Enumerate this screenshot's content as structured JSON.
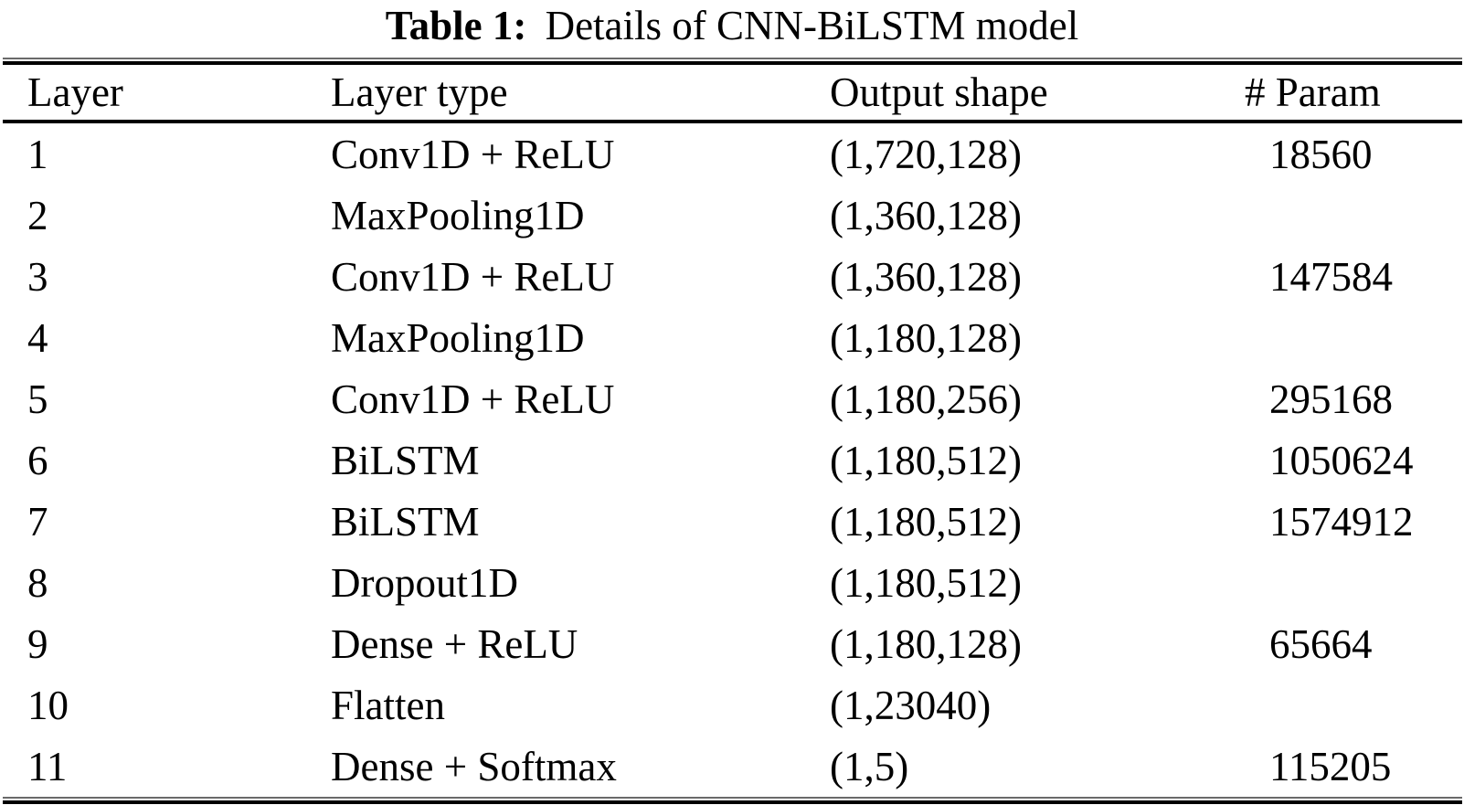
{
  "caption": {
    "label": "Table 1:",
    "text": "Details of CNN-BiLSTM model"
  },
  "table": {
    "headers": [
      "Layer",
      "Layer type",
      "Output shape",
      "# Param"
    ],
    "rows": [
      {
        "layer": "1",
        "layer_type": "Conv1D + ReLU",
        "output_shape": "(1,720,128)",
        "param": "18560"
      },
      {
        "layer": "2",
        "layer_type": "MaxPooling1D",
        "output_shape": "(1,360,128)",
        "param": ""
      },
      {
        "layer": "3",
        "layer_type": "Conv1D + ReLU",
        "output_shape": "(1,360,128)",
        "param": "147584"
      },
      {
        "layer": "4",
        "layer_type": "MaxPooling1D",
        "output_shape": "(1,180,128)",
        "param": ""
      },
      {
        "layer": "5",
        "layer_type": "Conv1D + ReLU",
        "output_shape": "(1,180,256)",
        "param": "295168"
      },
      {
        "layer": "6",
        "layer_type": "BiLSTM",
        "output_shape": "(1,180,512)",
        "param": "1050624"
      },
      {
        "layer": "7",
        "layer_type": "BiLSTM",
        "output_shape": "(1,180,512)",
        "param": "1574912"
      },
      {
        "layer": "8",
        "layer_type": "Dropout1D",
        "output_shape": "(1,180,512)",
        "param": ""
      },
      {
        "layer": "9",
        "layer_type": "Dense + ReLU",
        "output_shape": "(1,180,128)",
        "param": "65664"
      },
      {
        "layer": "10",
        "layer_type": "Flatten",
        "output_shape": "(1,23040)",
        "param": ""
      },
      {
        "layer": "11",
        "layer_type": "Dense + Softmax",
        "output_shape": "(1,5)",
        "param": "115205"
      }
    ]
  },
  "colors": {
    "text": "#000000",
    "background": "#ffffff",
    "rule": "#000000"
  }
}
